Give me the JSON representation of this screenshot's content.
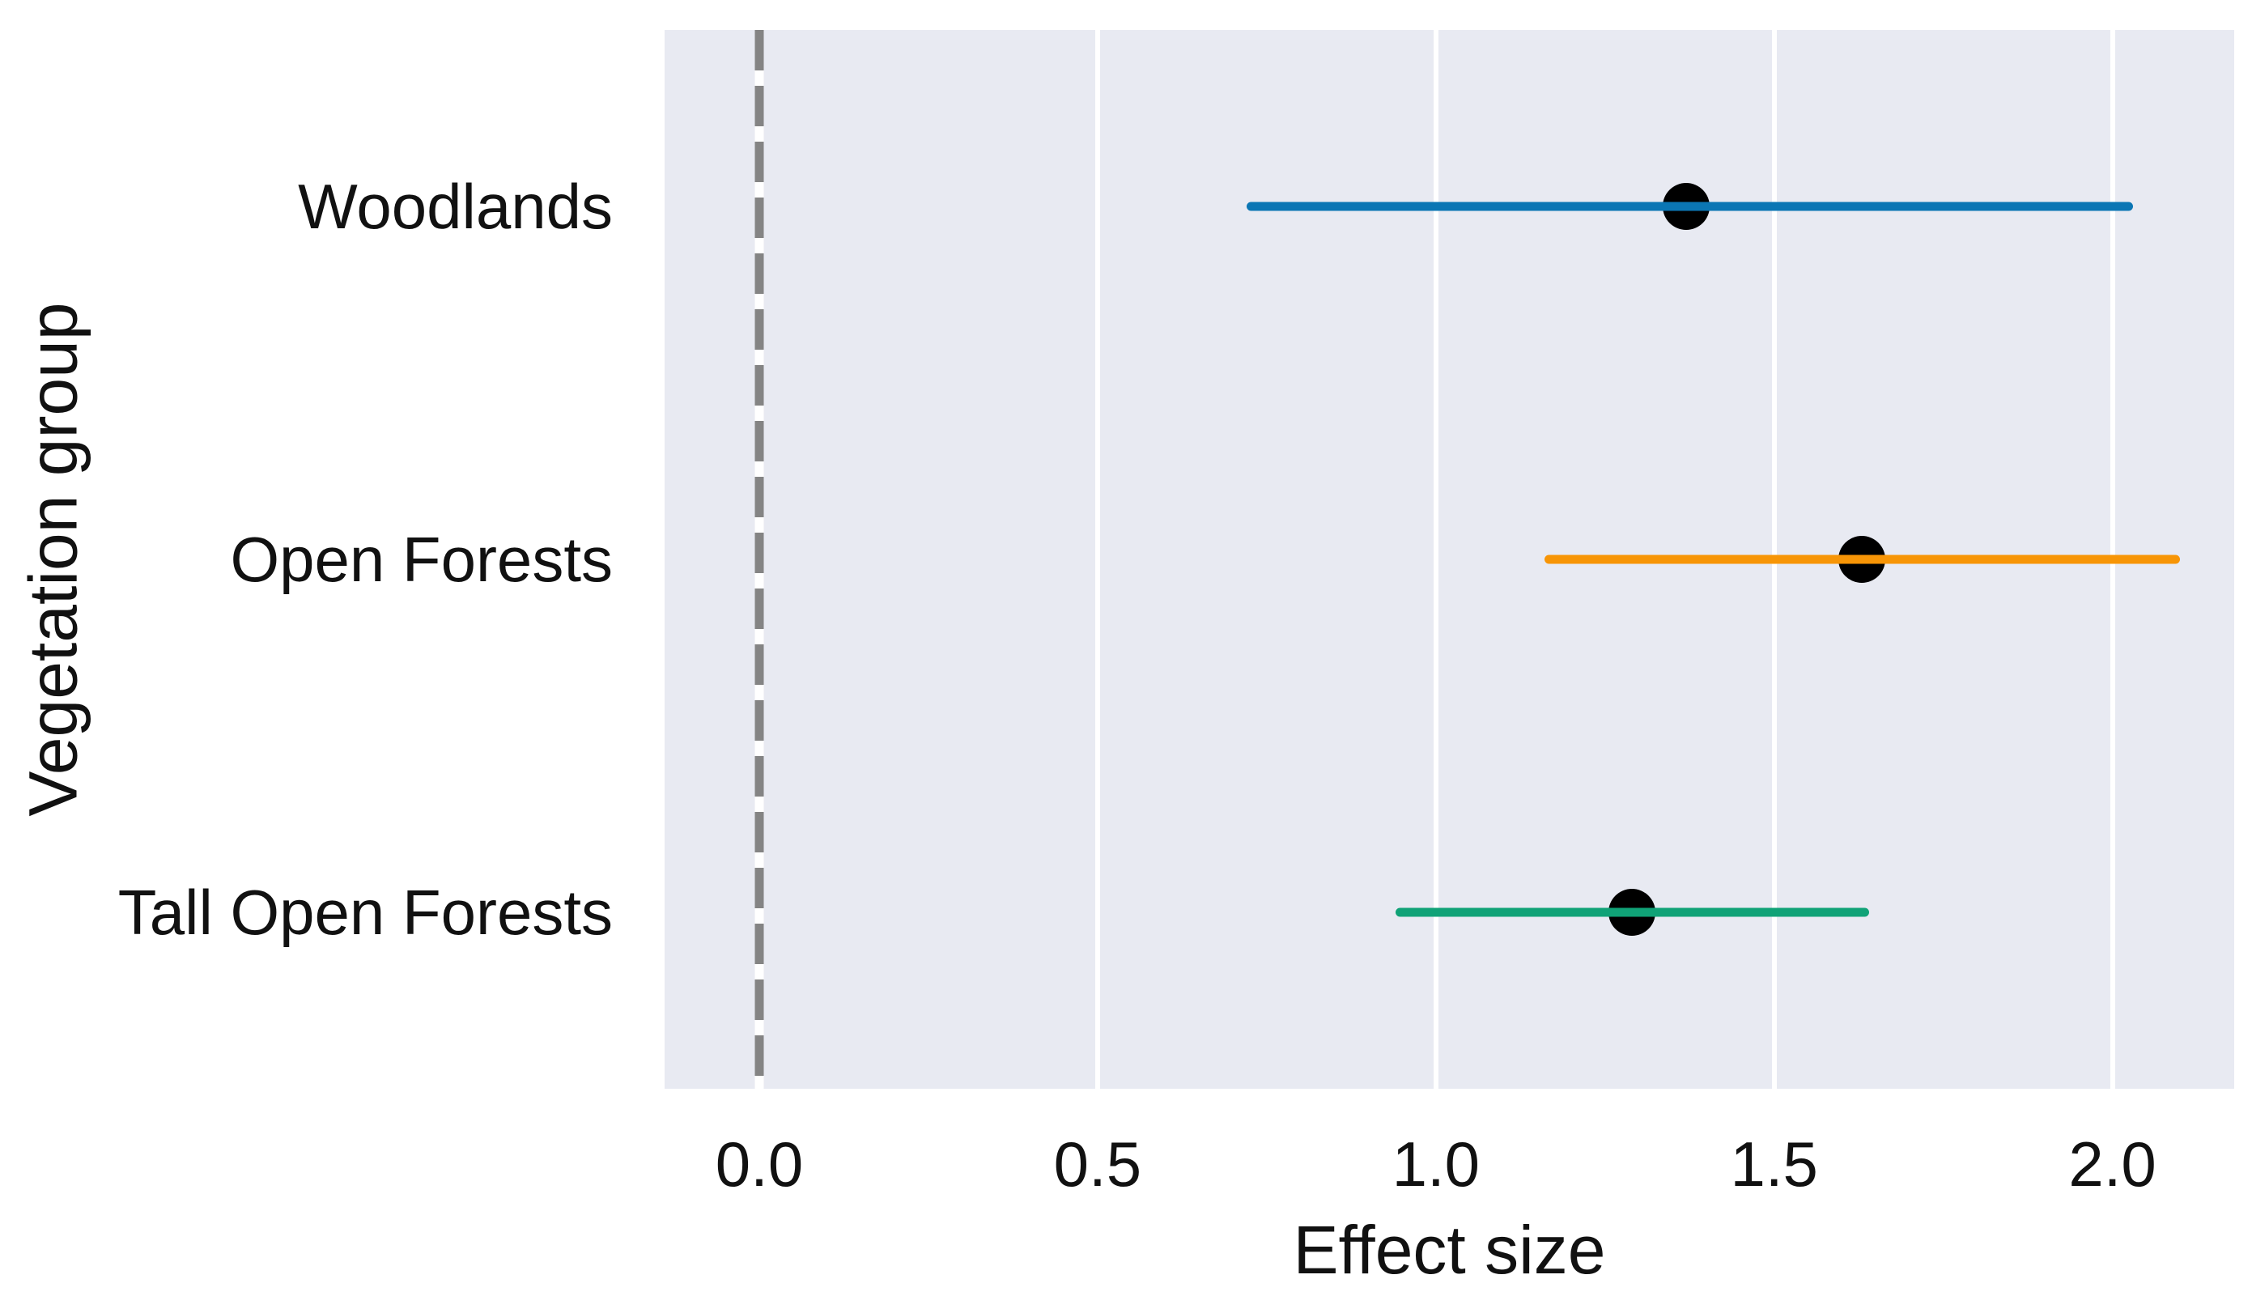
{
  "chart_data": {
    "type": "scatter",
    "variant": "point-range (forest plot of effect sizes with confidence intervals)",
    "title": "",
    "xlabel": "Effect size",
    "ylabel": "Vegetation group",
    "categories": [
      "Woodlands",
      "Open Forests",
      "Tall Open Forests"
    ],
    "series": [
      {
        "name": "Woodlands",
        "effect": 1.37,
        "ci_low": 0.72,
        "ci_high": 2.03,
        "line_color": "#0b76b4"
      },
      {
        "name": "Open Forests",
        "effect": 1.63,
        "ci_low": 1.16,
        "ci_high": 2.1,
        "line_color": "#f79506"
      },
      {
        "name": "Tall Open Forests",
        "effect": 1.29,
        "ci_low": 0.94,
        "ci_high": 1.64,
        "line_color": "#10a277"
      }
    ],
    "x_ticks": [
      "0.0",
      "0.5",
      "1.0",
      "1.5",
      "2.0"
    ],
    "x_tick_values": [
      0.0,
      0.5,
      1.0,
      1.5,
      2.0
    ],
    "xlim": [
      -0.14,
      2.18
    ],
    "reference_line": {
      "x": 0.0,
      "style": "dashed",
      "color": "#848484",
      "gap_color": "#ffffff"
    },
    "marker": {
      "shape": "circle",
      "color": "#000000"
    },
    "grid": {
      "vertical": true,
      "color": "#ffffff"
    },
    "plot_background": "#e8eaf2",
    "legend": "none"
  }
}
